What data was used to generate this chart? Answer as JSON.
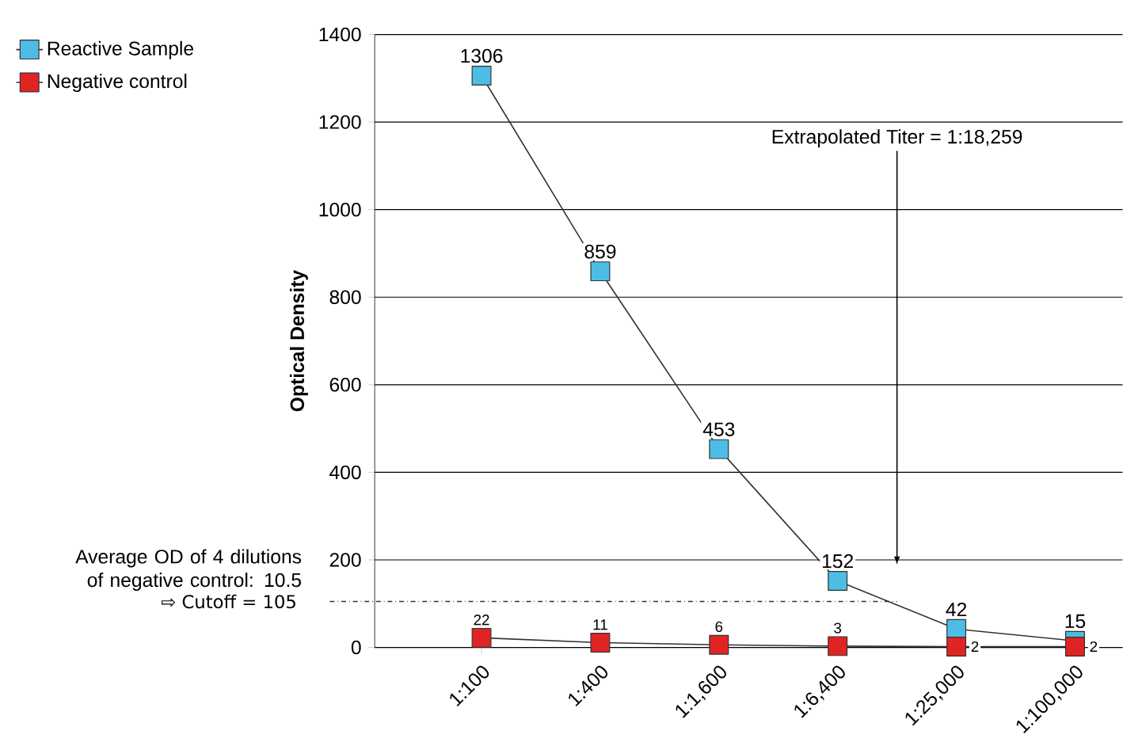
{
  "chart_data": {
    "type": "line",
    "ylabel": "Optical Density",
    "categories": [
      "1:100",
      "1:400",
      "1:1,600",
      "1:6,400",
      "1:25,000",
      "1:100,000"
    ],
    "series": [
      {
        "name": "Reactive Sample",
        "color": "#4dbde6",
        "values": [
          1306,
          859,
          453,
          152,
          42,
          15
        ]
      },
      {
        "name": "Negative control",
        "color": "#e02424",
        "values": [
          22,
          11,
          6,
          3,
          2,
          2
        ]
      }
    ],
    "ylim": [
      0,
      1400
    ],
    "yticks": [
      0,
      200,
      400,
      600,
      800,
      1000,
      1200,
      1400
    ],
    "grid": "y",
    "legend": "top left",
    "marker": "square",
    "line_style": "solid",
    "data_labels": true,
    "ref_lines": [
      {
        "axis": "y",
        "value": 105,
        "label": "⇨ Cutoff = 105",
        "line_style": "dashdot"
      }
    ],
    "annotations": [
      "Average OD of 4 dilutions of negative control: 10.5",
      "Extrapolated Titer = 1:18,259"
    ]
  }
}
